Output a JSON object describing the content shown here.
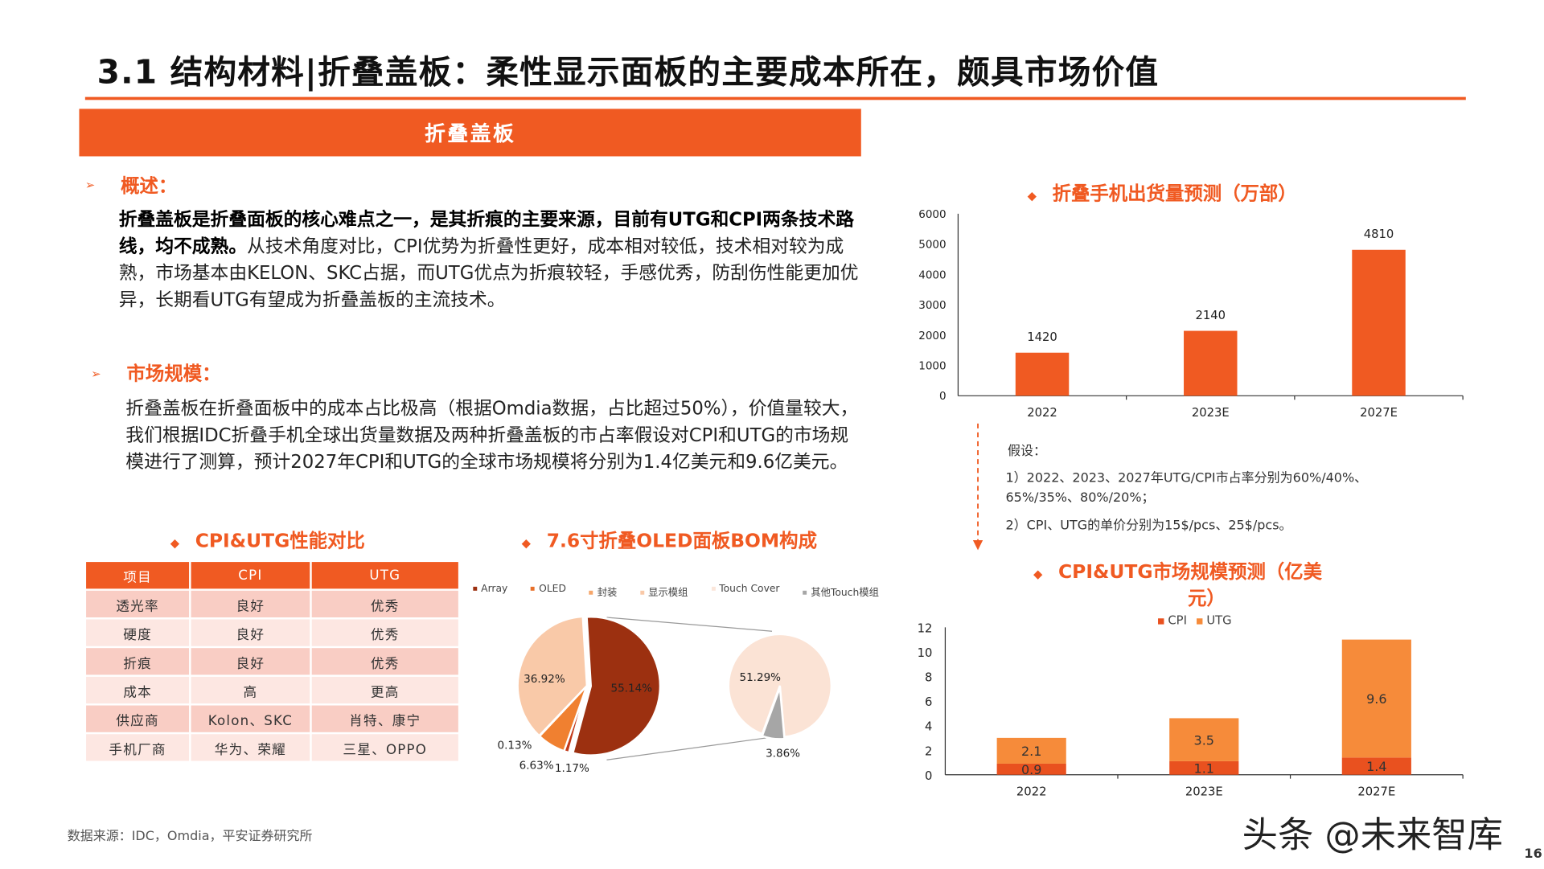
{
  "title": "3.1 结构材料|折叠盖板：柔性显示面板的主要成本所在，颇具市场价值",
  "banner": "折叠盖板",
  "overview": {
    "label": "概述：",
    "bold_text": "折叠盖板是折叠面板的核心难点之一，是其折痕的主要来源，目前有UTG和CPI两条技术路线，均不成熟。",
    "text": "从技术角度对比，CPI优势为折叠性更好，成本相对较低，技术相对较为成熟，市场基本由KELON、SKC占据，而UTG优点为折痕较轻，手感优秀，防刮伤性能更加优异，长期看UTG有望成为折叠盖板的主流技术。"
  },
  "market": {
    "label": "市场规模：",
    "text": "折叠盖板在折叠面板中的成本占比极高（根据Omdia数据，占比超过50%），价值量较大，我们根据IDC折叠手机全球出货量数据及两种折叠盖板的市占率假设对CPI和UTG的市场规模进行了测算，预计2027年CPI和UTG的全球市场规模将分别为1.4亿美元和9.6亿美元。"
  },
  "table": {
    "title": "CPI&UTG性能对比",
    "headers": [
      "项目",
      "CPI",
      "UTG"
    ],
    "rows": [
      [
        "透光率",
        "良好",
        "优秀"
      ],
      [
        "硬度",
        "良好",
        "优秀"
      ],
      [
        "折痕",
        "良好",
        "优秀"
      ],
      [
        "成本",
        "高",
        "更高"
      ],
      [
        "供应商",
        "Kolon、SKC",
        "肖特、康宁"
      ],
      [
        "手机厂商",
        "华为、荣耀",
        "三星、OPPO"
      ]
    ]
  },
  "assumptions": {
    "title": "假设：",
    "line1": "1）2022、2023、2027年UTG/CPI市占率分别为60%/40%、",
    "line1b": "65%/35%、80%/20%；",
    "line2": "2）CPI、UTG的单价分别为15$/pcs、25$/pcs。"
  },
  "source": "数据来源：IDC，Omdia，平安证券研究所",
  "watermark": "头条 @未来智库",
  "page_number": "16",
  "chart_data": [
    {
      "type": "pie",
      "title": "7.6寸折叠OLED面板BOM构成",
      "legend": [
        {
          "name": "Array",
          "color": "#9c3010"
        },
        {
          "name": "OLED",
          "color": "#e8702a"
        },
        {
          "name": "封装",
          "color": "#f6a66a"
        },
        {
          "name": "显示模组",
          "color": "#f9c9a8"
        },
        {
          "name": "Touch Cover",
          "color": "#fbe6da"
        },
        {
          "name": "其他Touch模组",
          "color": "#a6a6a6"
        }
      ],
      "main_pie": [
        {
          "label": "55.14%",
          "value": 55.14,
          "color": "#9c3010"
        },
        {
          "label": "1.17%",
          "value": 1.17,
          "color": "#c23a1a"
        },
        {
          "label": "6.63%",
          "value": 6.63,
          "color": "#f08030"
        },
        {
          "label": "0.13%",
          "value": 0.13,
          "color": "#f6a66a"
        },
        {
          "label": "36.92%",
          "value": 36.92,
          "color": "#f9c9a8"
        }
      ],
      "secondary_pie": [
        {
          "label": "51.29%",
          "value": 51.29,
          "color": "#fbe3d5"
        },
        {
          "label": "3.86%",
          "value": 3.86,
          "color": "#a6a6a6"
        }
      ]
    },
    {
      "type": "bar",
      "title": "折叠手机出货量预测（万部）",
      "categories": [
        "2022",
        "2023E",
        "2027E"
      ],
      "values": [
        1420,
        2140,
        4810
      ],
      "ylim": [
        0,
        6000
      ],
      "yticks": [
        0,
        1000,
        2000,
        3000,
        4000,
        5000,
        6000
      ],
      "color": "#f05a22"
    },
    {
      "type": "bar",
      "stacked": true,
      "title_line1": "CPI&UTG市场规模预测（亿美",
      "title_line2": "元）",
      "categories": [
        "2022",
        "2023E",
        "2027E"
      ],
      "series": [
        {
          "name": "CPI",
          "values": [
            0.9,
            1.1,
            1.4
          ],
          "color": "#e9511f"
        },
        {
          "name": "UTG",
          "values": [
            2.1,
            3.5,
            9.6
          ],
          "color": "#f68b3a"
        }
      ],
      "ylim": [
        0,
        12
      ],
      "yticks": [
        0,
        2,
        4,
        6,
        8,
        10,
        12
      ]
    }
  ]
}
